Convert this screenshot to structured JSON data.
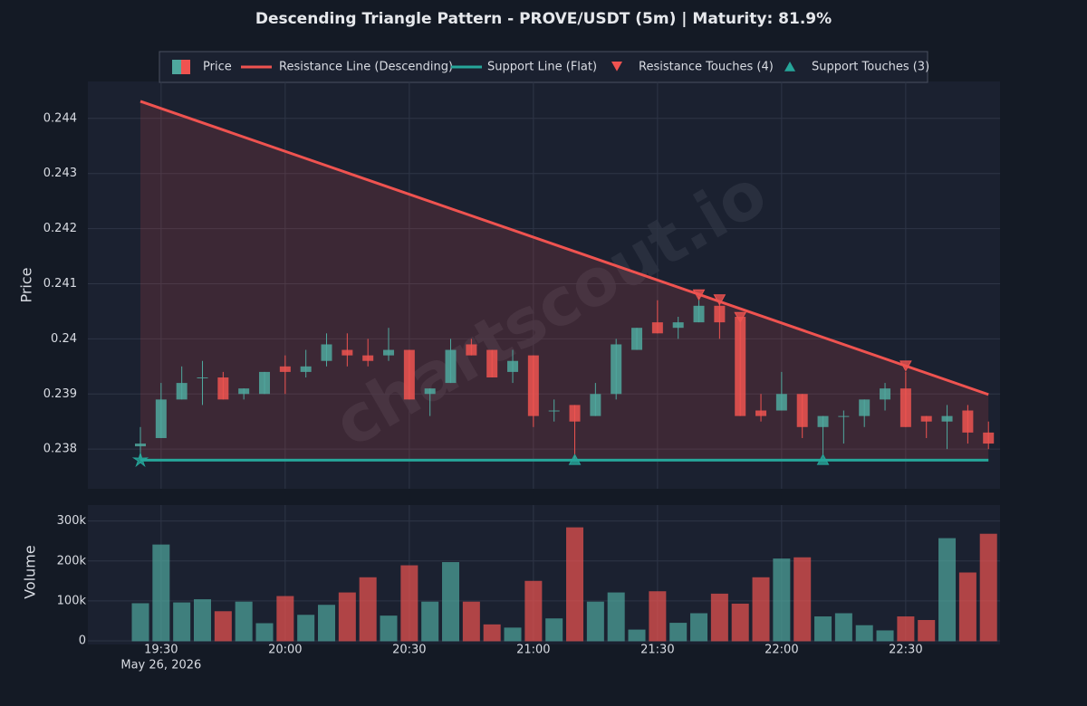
{
  "chart_data": [
    {
      "type": "candlestick",
      "title": "Descending Triangle Pattern - PROVE/USDT (5m) | Maturity: 81.9%",
      "ylabel": "Price",
      "x": [
        "19:25",
        "19:30",
        "19:35",
        "19:40",
        "19:45",
        "19:50",
        "19:55",
        "20:00",
        "20:05",
        "20:10",
        "20:15",
        "20:20",
        "20:25",
        "20:30",
        "20:35",
        "20:40",
        "20:45",
        "20:50",
        "20:55",
        "21:00",
        "21:05",
        "21:10",
        "21:15",
        "21:20",
        "21:25",
        "21:30",
        "21:35",
        "21:40",
        "21:45",
        "21:50",
        "21:55",
        "22:00",
        "22:05",
        "22:10",
        "22:15",
        "22:20",
        "22:25",
        "22:30",
        "22:35",
        "22:40",
        "22:45",
        "22:50"
      ],
      "open": [
        0.23805,
        0.2382,
        0.2389,
        0.2393,
        0.2393,
        0.239,
        0.239,
        0.2395,
        0.2394,
        0.2396,
        0.2398,
        0.2397,
        0.2397,
        0.2398,
        0.239,
        0.2392,
        0.2399,
        0.2398,
        0.2394,
        0.2397,
        0.2387,
        0.2388,
        0.2386,
        0.239,
        0.2398,
        0.2403,
        0.2402,
        0.2403,
        0.2406,
        0.2404,
        0.2387,
        0.2387,
        0.239,
        0.2384,
        0.2386,
        0.2386,
        0.2389,
        0.2391,
        0.2386,
        0.2385,
        0.2387,
        0.2383
      ],
      "high": [
        0.2384,
        0.2392,
        0.2395,
        0.2396,
        0.2394,
        0.2391,
        0.2394,
        0.2397,
        0.2398,
        0.2401,
        0.2401,
        0.24,
        0.2402,
        0.2398,
        0.2391,
        0.24,
        0.24,
        0.2398,
        0.2398,
        0.2397,
        0.2389,
        0.2388,
        0.2392,
        0.24,
        0.2402,
        0.2407,
        0.2404,
        0.2408,
        0.2407,
        0.2404,
        0.239,
        0.2394,
        0.239,
        0.2386,
        0.2387,
        0.2389,
        0.2392,
        0.2394,
        0.2386,
        0.2388,
        0.2388,
        0.2385
      ],
      "low": [
        0.2378,
        0.2382,
        0.2389,
        0.2388,
        0.2389,
        0.2389,
        0.239,
        0.239,
        0.2393,
        0.2395,
        0.2395,
        0.2395,
        0.2396,
        0.2389,
        0.2386,
        0.2392,
        0.2397,
        0.2393,
        0.2392,
        0.2384,
        0.2385,
        0.2378,
        0.2386,
        0.2389,
        0.2398,
        0.2401,
        0.24,
        0.2403,
        0.24,
        0.2386,
        0.2385,
        0.2387,
        0.2382,
        0.2379,
        0.2381,
        0.2384,
        0.2387,
        0.2384,
        0.2382,
        0.238,
        0.2381,
        0.238
      ],
      "close": [
        0.2381,
        0.2389,
        0.2392,
        0.2393,
        0.2389,
        0.2391,
        0.2394,
        0.2394,
        0.2395,
        0.2399,
        0.2397,
        0.2396,
        0.2398,
        0.2389,
        0.2391,
        0.2398,
        0.2397,
        0.2393,
        0.2396,
        0.2386,
        0.2387,
        0.2385,
        0.239,
        0.2399,
        0.2402,
        0.2401,
        0.2403,
        0.2406,
        0.2403,
        0.2386,
        0.2386,
        0.239,
        0.2384,
        0.2386,
        0.2386,
        0.2389,
        0.2391,
        0.2384,
        0.2385,
        0.2386,
        0.2383,
        0.2381
      ],
      "up_color": "#4fa89e",
      "down_color": "#ef5350",
      "ylim": [
        0.23728,
        0.24467
      ],
      "yticks": [
        0.238,
        0.239,
        0.24,
        0.241,
        0.242,
        0.243,
        0.244
      ],
      "xticks": [
        "19:30",
        "20:00",
        "20:30",
        "21:00",
        "21:30",
        "22:00",
        "22:30"
      ],
      "date_label": "May 26, 2026",
      "grid": true,
      "legend_label": "Price",
      "series": [
        {
          "name": "Resistance Line (Descending)",
          "color": "#ef5350",
          "x": [
            "19:25",
            "22:50"
          ],
          "values": [
            0.24431,
            0.23899
          ]
        },
        {
          "name": "Support Line (Flat)",
          "color": "#26a69a",
          "x": [
            "19:25",
            "22:50"
          ],
          "values": [
            0.2378,
            0.2378
          ]
        }
      ],
      "touches": [
        {
          "name": "Resistance Touches (4)",
          "color": "#ef5350",
          "marker": "triangle-down",
          "x": [
            "21:40",
            "21:45",
            "21:50",
            "22:30"
          ],
          "values": [
            0.24079,
            0.2407,
            0.24038,
            0.2395
          ]
        },
        {
          "name": "Support Touches (3)",
          "color": "#26a69a",
          "marker": "triangle-up",
          "x": [
            "19:25",
            "21:10",
            "22:10"
          ],
          "values": [
            0.2378,
            0.2378,
            0.2378
          ],
          "markers": [
            "star",
            "triangle-up",
            "triangle-up"
          ]
        }
      ],
      "watermark": "chartscout.io"
    },
    {
      "type": "volume",
      "ylabel": "Volume",
      "values": [
        93000,
        240000,
        95000,
        103000,
        73000,
        97000,
        43000,
        111000,
        64000,
        89000,
        120000,
        158000,
        62000,
        188000,
        97000,
        196000,
        97000,
        40000,
        32000,
        149000,
        55000,
        283000,
        97000,
        120000,
        27000,
        123000,
        44000,
        68000,
        117000,
        92000,
        158000,
        205000,
        208000,
        60000,
        68000,
        38000,
        25000,
        60000,
        51000,
        256000,
        170000,
        267000
      ],
      "ylim": [
        0,
        340000
      ],
      "yticks": [
        0,
        {
          "value": 100000,
          "label": "100k"
        },
        {
          "value": 200000,
          "label": "200k"
        },
        {
          "value": 300000,
          "label": "300k"
        }
      ],
      "grid": true
    }
  ]
}
